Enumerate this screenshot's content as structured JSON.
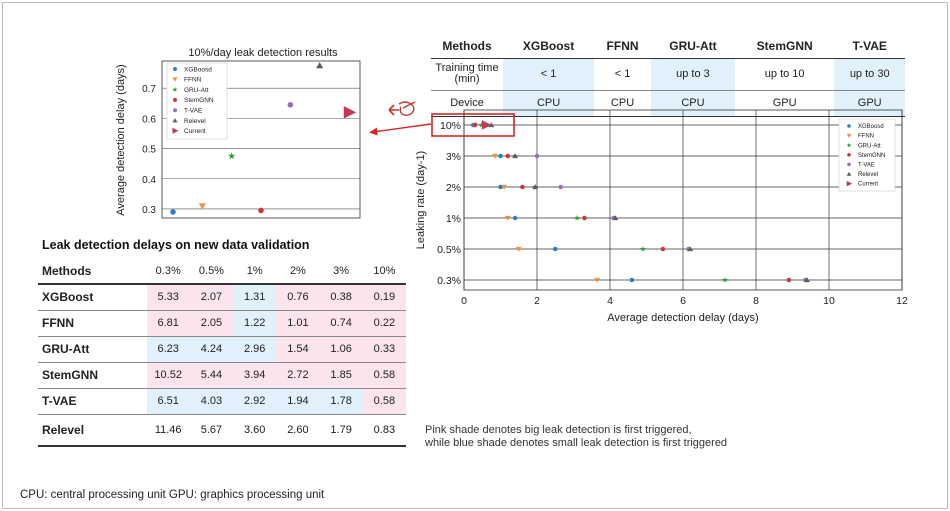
{
  "colors": {
    "pink_shade": "#fbe4ee",
    "blue_shade": "#e0f1fb",
    "highlight_box": "#d62728"
  },
  "markers": {
    "XGBoosd": {
      "color": "#2f7ebf",
      "shape": "circle"
    },
    "FFNN": {
      "color": "#f0913d",
      "shape": "triangle-down"
    },
    "GRU-Att": {
      "color": "#2ca02c",
      "shape": "star"
    },
    "StemGNN": {
      "color": "#d0323f",
      "shape": "circle"
    },
    "T-VAE": {
      "color": "#9b6cc0",
      "shape": "circle"
    },
    "Relevel": {
      "color": "#5c5c5c",
      "shape": "triangle-up"
    },
    "Current": {
      "color": "#c0395a",
      "shape": "triangle-right"
    }
  },
  "icons": {
    "hand": "pointing-hand-icon",
    "arrow": "left-arrow-icon"
  },
  "chart_data": [
    {
      "type": "scatter",
      "title": "10%/day leak detection results",
      "xlabel": "",
      "ylabel": "Average detection delay (days)",
      "ylim": [
        0.27,
        0.79
      ],
      "yticks": [
        0.3,
        0.4,
        0.5,
        0.6,
        0.7
      ],
      "grid": true,
      "legend": "top-left",
      "series": [
        {
          "name": "XGBoosd",
          "x": [
            1
          ],
          "y": [
            0.29
          ]
        },
        {
          "name": "FFNN",
          "x": [
            2
          ],
          "y": [
            0.31
          ]
        },
        {
          "name": "GRU-Att",
          "x": [
            3
          ],
          "y": [
            0.475
          ]
        },
        {
          "name": "StemGNN",
          "x": [
            4
          ],
          "y": [
            0.295
          ]
        },
        {
          "name": "T-VAE",
          "x": [
            5
          ],
          "y": [
            0.645
          ]
        },
        {
          "name": "Relevel",
          "x": [
            6
          ],
          "y": [
            0.775
          ]
        },
        {
          "name": "Current",
          "x": [
            7
          ],
          "y": [
            0.62
          ]
        }
      ]
    },
    {
      "type": "scatter",
      "title": "",
      "xlabel": "Average detection delay (days)",
      "ylabel": "Leaking rate (day-1)",
      "xlim": [
        0,
        12
      ],
      "xticks": [
        0,
        2,
        4,
        6,
        8,
        10,
        12
      ],
      "categories": [
        "0.3%",
        "0.5%",
        "1%",
        "2%",
        "3%",
        "10%"
      ],
      "grid": true,
      "legend": "top-right",
      "series": [
        {
          "name": "XGBoosd",
          "values": [
            4.6,
            2.5,
            1.4,
            1.0,
            1.0,
            0.25
          ]
        },
        {
          "name": "FFNN",
          "values": [
            3.65,
            1.5,
            1.2,
            1.1,
            0.85,
            0.3
          ]
        },
        {
          "name": "GRU-Att",
          "values": [
            7.15,
            4.9,
            3.1,
            1.95,
            1.4,
            0.48
          ]
        },
        {
          "name": "StemGNN",
          "values": [
            8.9,
            5.45,
            3.3,
            1.6,
            1.2,
            0.3
          ]
        },
        {
          "name": "T-VAE",
          "values": [
            9.35,
            6.15,
            4.1,
            2.65,
            2.0,
            0.6
          ]
        },
        {
          "name": "Relevel",
          "values": [
            9.4,
            6.2,
            4.15,
            1.95,
            1.4,
            0.75
          ]
        },
        {
          "name": "Current",
          "values": [
            null,
            null,
            null,
            null,
            null,
            0.6
          ]
        }
      ]
    }
  ],
  "leak_table": {
    "title": "Leak detection delays on new data validation",
    "header": [
      "Methods",
      "0.3%",
      "0.5%",
      "1%",
      "2%",
      "3%",
      "10%"
    ],
    "rows": [
      {
        "method": "XGBoost",
        "values": [
          "5.33",
          "2.07",
          "1.31",
          "0.76",
          "0.38",
          "0.19"
        ],
        "shade": [
          "pink",
          "pink",
          "blue",
          "pink",
          "pink",
          "pink"
        ]
      },
      {
        "method": "FFNN",
        "values": [
          "6.81",
          "2.05",
          "1.22",
          "1.01",
          "0.74",
          "0.22"
        ],
        "shade": [
          "pink",
          "pink",
          "blue",
          "pink",
          "pink",
          "pink"
        ]
      },
      {
        "method": "GRU-Att",
        "values": [
          "6.23",
          "4.24",
          "2.96",
          "1.54",
          "1.06",
          "0.33"
        ],
        "shade": [
          "blue",
          "blue",
          "blue",
          "pink",
          "pink",
          "pink"
        ]
      },
      {
        "method": "StemGNN",
        "values": [
          "10.52",
          "5.44",
          "3.94",
          "2.72",
          "1.85",
          "0.58"
        ],
        "shade": [
          "pink",
          "pink",
          "pink",
          "pink",
          "pink",
          "pink"
        ]
      },
      {
        "method": "T-VAE",
        "values": [
          "6.51",
          "4.03",
          "2.92",
          "1.94",
          "1.78",
          "0.58"
        ],
        "shade": [
          "blue",
          "blue",
          "blue",
          "blue",
          "blue",
          "pink"
        ]
      },
      {
        "method": "Relevel",
        "values": [
          "11.46",
          "5.67",
          "3.60",
          "2.60",
          "1.79",
          "0.83"
        ],
        "shade": [
          "",
          "",
          "",
          "",
          "",
          ""
        ]
      }
    ]
  },
  "compare_table": {
    "header": [
      "Methods",
      "XGBoost",
      "FFNN",
      "GRU-Att",
      "StemGNN",
      "T-VAE"
    ],
    "training_label_1": "Training time",
    "training_label_2": "(min)",
    "training": [
      "< 1",
      "< 1",
      "up to 3",
      "up to 10",
      "up to 30"
    ],
    "device_label": "Device",
    "device": [
      "CPU",
      "CPU",
      "CPU",
      "GPU",
      "GPU"
    ],
    "shade": [
      "blue",
      "",
      "blue",
      "",
      "blue"
    ]
  },
  "note": {
    "line1": "Pink shade denotes big leak detection is first triggered,",
    "line2": "while blue shade denotes small leak detection is first triggered"
  },
  "footnote": "CPU: central processing unit   GPU: graphics processing unit"
}
